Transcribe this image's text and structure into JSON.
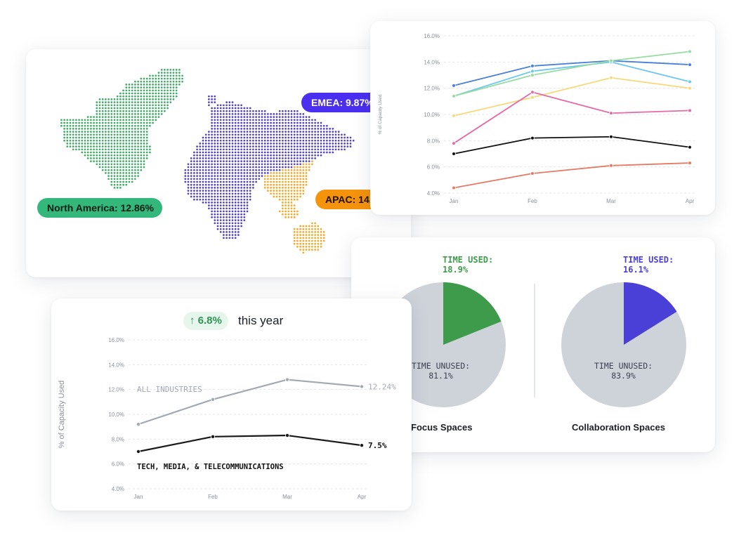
{
  "map": {
    "north_america_label": "North America: 12.86%",
    "emea_label": "EMEA: 9.87%",
    "apac_label": "APAC: 14.",
    "colors": {
      "north_america": "#3cab62",
      "emea": "#5040c8",
      "apac": "#f5a623"
    }
  },
  "pies": [
    {
      "used_label": "TIME USED:",
      "used_value": "18.9%",
      "unused_label": "TIME UNUSED:",
      "unused_value": "81.1%",
      "caption": "Focus Spaces",
      "fraction": 0.189,
      "color": "#3e9b4c"
    },
    {
      "used_label": "TIME USED:",
      "used_value": "16.1%",
      "unused_label": "TIME UNUSED:",
      "unused_value": "83.9%",
      "caption": "Collaboration Spaces",
      "fraction": 0.161,
      "color": "#4a3fd6"
    }
  ],
  "trend": {
    "badge_arrow": "↑",
    "badge_value": "6.8%",
    "badge_text": "this year",
    "all_label": "ALL INDUSTRIES",
    "all_end_label": "12.24%",
    "tech_label": "TECH, MEDIA, & TELECOMMUNICATIONS",
    "tech_end_label": "7.5%"
  },
  "chart_data": [
    {
      "type": "line",
      "categories": [
        "Jan",
        "Feb",
        "Mar",
        "Apr"
      ],
      "ylabel": "% of Capacity Used",
      "ylim": [
        4,
        16
      ],
      "yticks": [
        "4.0%",
        "6.0%",
        "8.0%",
        "10.0%",
        "12.0%",
        "14.0%",
        "16.0%"
      ],
      "grid": true,
      "series": [
        {
          "values": [
            12.2,
            13.7,
            14.1,
            13.8
          ],
          "color": "#4a7fd8"
        },
        {
          "values": [
            11.4,
            13.3,
            14.0,
            12.5
          ],
          "color": "#6cc8ef"
        },
        {
          "values": [
            11.4,
            13.0,
            14.1,
            14.8
          ],
          "color": "#96dca1"
        },
        {
          "values": [
            9.9,
            11.3,
            12.8,
            12.0
          ],
          "color": "#f7d97a"
        },
        {
          "values": [
            7.8,
            11.7,
            10.1,
            10.3
          ],
          "color": "#e46aa6"
        },
        {
          "values": [
            7.0,
            8.2,
            8.3,
            7.5
          ],
          "color": "#111111"
        },
        {
          "values": [
            4.4,
            5.5,
            6.1,
            6.3
          ],
          "color": "#e57a64"
        }
      ]
    },
    {
      "type": "line",
      "categories": [
        "Jan",
        "Feb",
        "Mar",
        "Apr"
      ],
      "ylabel": "% of Capacity Used",
      "ylim": [
        4,
        16
      ],
      "yticks": [
        "4.0%",
        "6.0%",
        "8.0%",
        "10.0%",
        "12.0%",
        "14.0%",
        "16.0%"
      ],
      "grid": true,
      "series": [
        {
          "values": [
            9.2,
            11.2,
            12.8,
            12.24
          ],
          "color": "#a3a9b3"
        },
        {
          "values": [
            7.0,
            8.2,
            8.3,
            7.5
          ],
          "color": "#1a1a1a"
        }
      ]
    },
    {
      "type": "pie",
      "series": [
        {
          "values": [
            18.9,
            81.1
          ]
        },
        {
          "values": [
            16.1,
            83.9
          ]
        }
      ]
    }
  ]
}
